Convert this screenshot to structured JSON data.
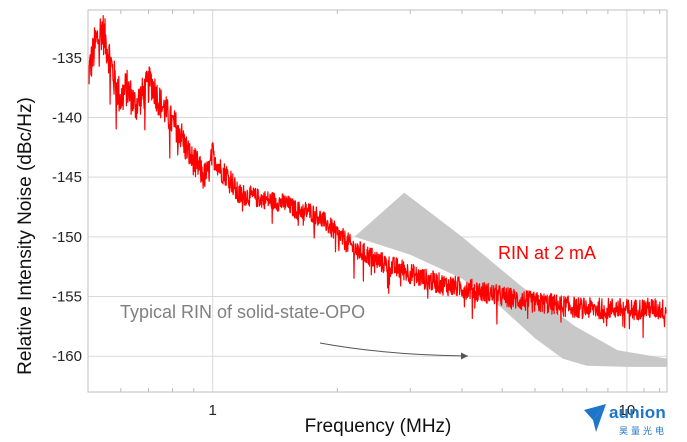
{
  "chart_data": {
    "type": "line",
    "xlabel": "Frequency (MHz)",
    "ylabel": "Relative Intensity Noise (dBc/Hz)",
    "x_scale": "log",
    "xlim": [
      0.5,
      12.5
    ],
    "ylim": [
      -163,
      -131
    ],
    "x_ticks": [
      {
        "value": 1,
        "label": "1"
      },
      {
        "value": 10,
        "label": "10"
      }
    ],
    "y_ticks": [
      {
        "value": -135,
        "label": "-135"
      },
      {
        "value": -140,
        "label": "-140"
      },
      {
        "value": -145,
        "label": "-145"
      },
      {
        "value": -150,
        "label": "-150"
      },
      {
        "value": -155,
        "label": "-155"
      },
      {
        "value": -160,
        "label": "-160"
      }
    ],
    "grid": true,
    "series": [
      {
        "name": "RIN at 2 mA",
        "color": "#ff0000",
        "x": [
          0.5,
          0.52,
          0.54,
          0.56,
          0.58,
          0.6,
          0.62,
          0.65,
          0.68,
          0.71,
          0.74,
          0.77,
          0.8,
          0.83,
          0.86,
          0.89,
          0.92,
          0.95,
          0.98,
          1.0,
          1.05,
          1.1,
          1.15,
          1.2,
          1.3,
          1.4,
          1.5,
          1.6,
          1.7,
          1.8,
          1.9,
          2.0,
          2.1,
          2.2,
          2.35,
          2.5,
          2.7,
          2.9,
          3.1,
          3.3,
          3.6,
          3.9,
          4.2,
          4.6,
          5.0,
          5.5,
          6.0,
          6.5,
          7.0,
          7.5,
          8.0,
          8.5,
          9.0,
          9.5,
          10.0,
          10.5,
          11.0,
          11.5,
          12.0,
          12.5
        ],
        "y": [
          -136.5,
          -134.0,
          -132.5,
          -134.5,
          -137.0,
          -138.5,
          -137.5,
          -139.0,
          -138.0,
          -137.0,
          -138.5,
          -139.5,
          -140.5,
          -141.0,
          -142.5,
          -143.5,
          -144.0,
          -145.0,
          -144.5,
          -143.0,
          -144.5,
          -145.0,
          -146.5,
          -146.5,
          -146.8,
          -147.0,
          -147.2,
          -147.8,
          -147.8,
          -148.3,
          -149.0,
          -149.8,
          -150.4,
          -151.0,
          -151.5,
          -152.0,
          -152.5,
          -152.8,
          -153.3,
          -153.6,
          -154.0,
          -154.2,
          -154.4,
          -154.7,
          -155.0,
          -155.3,
          -155.5,
          -155.6,
          -155.8,
          -155.9,
          -156.0,
          -156.0,
          -156.0,
          -156.0,
          -156.1,
          -156.1,
          -156.0,
          -156.0,
          -156.1,
          -156.1
        ],
        "noise_amplitude_db": [
          1.6,
          1.8,
          1.8,
          1.7,
          1.7,
          1.7,
          1.6,
          1.5,
          1.5,
          1.5,
          1.4,
          1.4,
          1.3,
          1.3,
          1.3,
          1.2,
          1.2,
          1.2,
          1.1,
          1.1,
          1.0,
          1.0,
          1.0,
          0.9,
          0.8,
          0.8,
          0.8,
          0.8,
          0.8,
          0.8,
          0.8,
          0.9,
          0.9,
          0.9,
          0.9,
          0.9,
          0.9,
          0.9,
          0.9,
          0.9,
          0.9,
          0.9,
          0.9,
          0.9,
          0.9,
          0.9,
          0.9,
          0.9,
          0.9,
          0.9,
          0.9,
          0.9,
          0.9,
          0.9,
          0.9,
          0.9,
          0.9,
          0.9,
          0.9,
          0.9
        ]
      }
    ],
    "shaded_region": {
      "name": "Typical RIN of solid-state-OPO",
      "color": "#c8c8c8",
      "upper": {
        "x": [
          2.2,
          2.9,
          4.0,
          5.5,
          7.5,
          9.5,
          12.5
        ],
        "y": [
          -150.0,
          -146.3,
          -150.0,
          -154.0,
          -157.5,
          -159.5,
          -160.2
        ]
      },
      "lower": {
        "x": [
          2.2,
          3.0,
          4.0,
          5.0,
          6.0,
          7.0,
          8.0,
          10.0,
          12.5
        ],
        "y": [
          -150.0,
          -151.5,
          -153.5,
          -156.0,
          -158.5,
          -160.2,
          -160.8,
          -160.9,
          -160.9
        ]
      }
    },
    "annotations": {
      "rin_label": "RIN at 2 mA",
      "opo_label": "Typical RIN of solid-state-OPO"
    }
  },
  "logo": {
    "word": "aunion",
    "sub": "昊量光电",
    "color": "#1d76c9"
  }
}
